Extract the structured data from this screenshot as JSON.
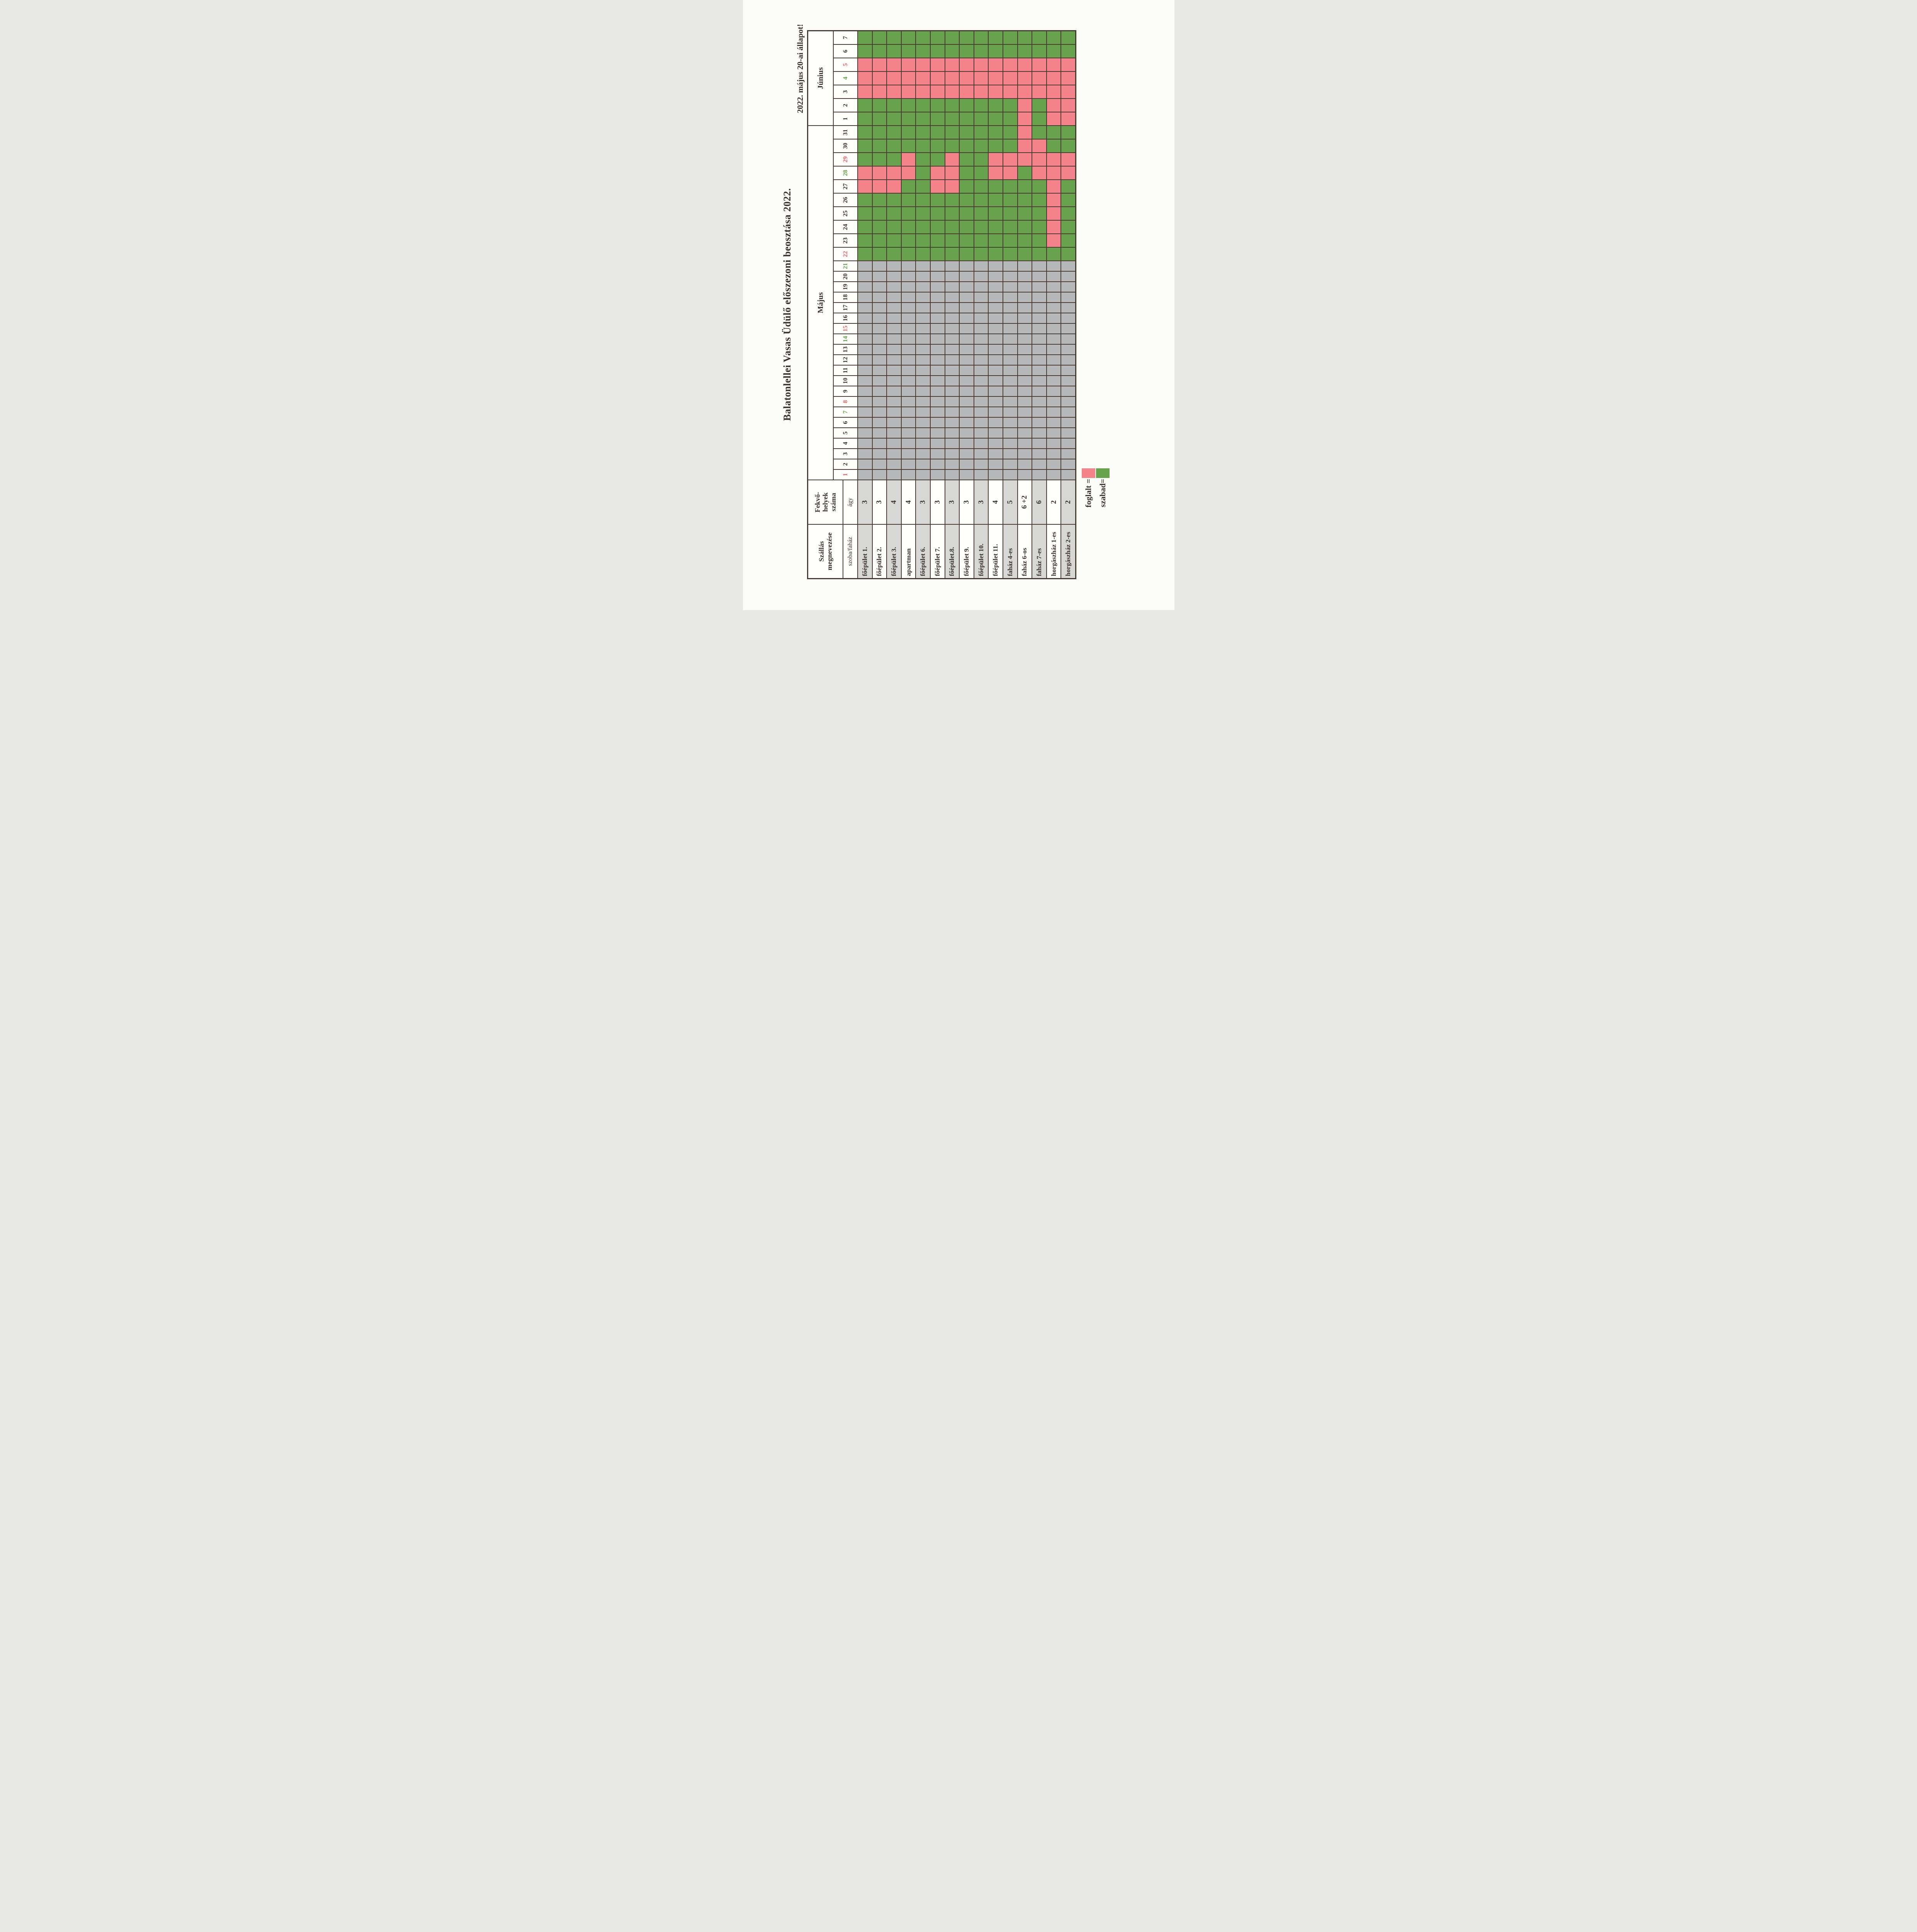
{
  "page": {
    "title": "Balatonlellei Vasas Üdülő előszezoni beosztása 2022.",
    "status_note": "2022. május 20-ai állapot!"
  },
  "legend": {
    "occupied_label": "foglalt =",
    "free_label": "szabad=",
    "occupied_color": "#f5838c",
    "free_color": "#68a24c"
  },
  "colors": {
    "free_green": "#68a24c",
    "occupied_pink": "#f5838c",
    "past_gray": "#b7b8ba",
    "zebra_gray": "#d7d7d6",
    "grid_line": "#4a3c33",
    "ink": "#3b312c",
    "sunday_red": "#ee5f68",
    "saturday_green": "#61a544"
  },
  "table": {
    "name_header": "Szállás megnevezése",
    "name_subheader": "szoba/faház",
    "beds_header_lines": [
      "Fekvő-",
      "helyek",
      "száma"
    ],
    "beds_subheader": "ágy",
    "months": [
      {
        "label": "Május",
        "days": 31
      },
      {
        "label": "Június",
        "days": 7
      }
    ],
    "past_gray_through_may_day": 21,
    "red_dates": {
      "may": [
        1,
        8,
        15,
        22,
        29
      ],
      "june": [
        5
      ]
    },
    "green_dates": {
      "may": [
        7,
        14,
        21,
        28
      ],
      "june": [
        4
      ]
    }
  },
  "units": [
    {
      "name": "főépület 1.",
      "beds": "3",
      "shaded": true,
      "booked_may": [
        27,
        28
      ],
      "booked_june": [
        3,
        4,
        5
      ]
    },
    {
      "name": "főépület 2.",
      "beds": "3",
      "shaded": false,
      "booked_may": [
        27,
        28
      ],
      "booked_june": [
        3,
        4,
        5
      ]
    },
    {
      "name": "főépület 3.",
      "beds": "4",
      "shaded": true,
      "booked_may": [
        27,
        28
      ],
      "booked_june": [
        3,
        4,
        5
      ]
    },
    {
      "name": "apartman",
      "beds": "4",
      "shaded": false,
      "booked_may": [
        28,
        29
      ],
      "booked_june": [
        3,
        4,
        5
      ]
    },
    {
      "name": "főépület 6.",
      "beds": "3",
      "shaded": true,
      "booked_may": [],
      "booked_june": [
        3,
        4,
        5
      ]
    },
    {
      "name": "főépület 7.",
      "beds": "3",
      "shaded": false,
      "booked_may": [
        27,
        28
      ],
      "booked_june": [
        3,
        4,
        5
      ]
    },
    {
      "name": "főépület.8.",
      "beds": "3",
      "shaded": true,
      "booked_may": [
        27,
        28,
        29
      ],
      "booked_june": [
        3,
        4,
        5
      ]
    },
    {
      "name": "főépület 9.",
      "beds": "3",
      "shaded": false,
      "booked_may": [],
      "booked_june": [
        3,
        4,
        5
      ]
    },
    {
      "name": "főépület 10.",
      "beds": "3",
      "shaded": true,
      "booked_may": [],
      "booked_june": [
        3,
        4,
        5
      ]
    },
    {
      "name": "főépület 11.",
      "beds": "4",
      "shaded": false,
      "booked_may": [
        28,
        29
      ],
      "booked_june": [
        3,
        4,
        5
      ]
    },
    {
      "name": "faház 4-es",
      "beds": "5",
      "shaded": true,
      "booked_may": [
        28,
        29
      ],
      "booked_june": [
        3,
        4,
        5
      ]
    },
    {
      "name": "faház 6-os",
      "beds": "6 +2",
      "shaded": false,
      "booked_may": [
        29,
        30,
        31
      ],
      "booked_june": [
        1,
        2,
        3,
        4,
        5
      ]
    },
    {
      "name": "faház 7-es",
      "beds": "6",
      "shaded": true,
      "booked_may": [
        28,
        29,
        30
      ],
      "booked_june": [
        3,
        4,
        5
      ]
    },
    {
      "name": "horgászház 1-es",
      "beds": "2",
      "shaded": false,
      "booked_may": [
        23,
        24,
        25,
        26,
        27,
        28,
        29
      ],
      "booked_june": [
        1,
        2,
        3,
        4,
        5
      ]
    },
    {
      "name": "horgászház 2-es",
      "beds": "2",
      "shaded": true,
      "booked_may": [
        28,
        29
      ],
      "booked_june": [
        1,
        2,
        3,
        4,
        5
      ]
    }
  ]
}
